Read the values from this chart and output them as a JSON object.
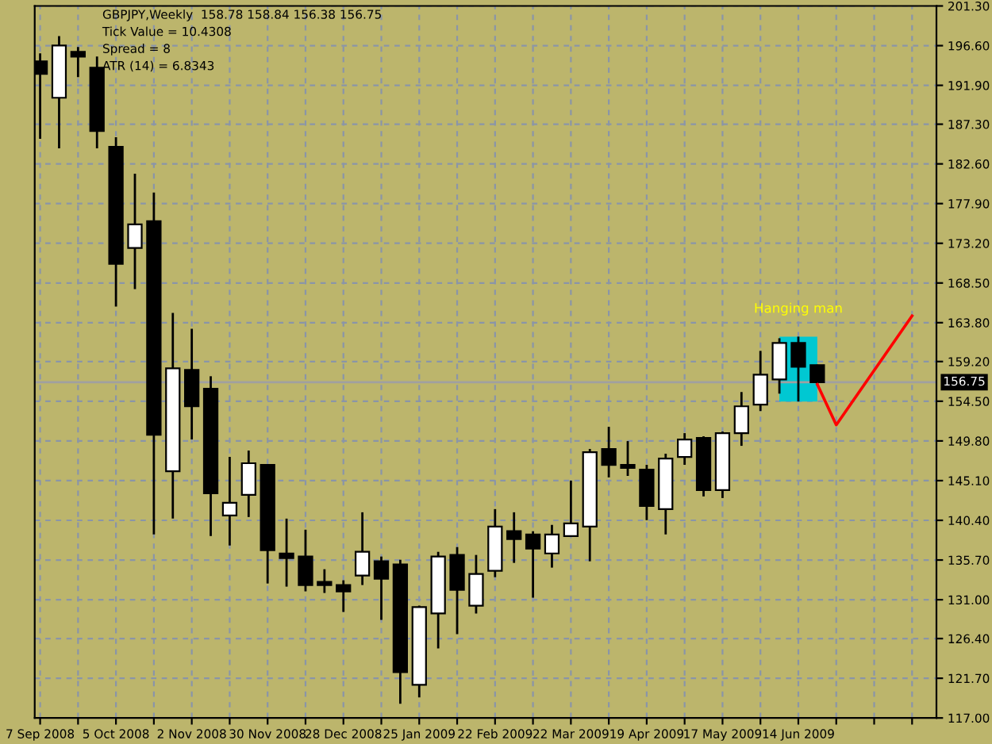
{
  "chart_data": {
    "type": "candlestick",
    "annotations": [
      "GBPJPY,Weekly  158.78 158.84 156.38 156.75",
      "Tick Value = 10.4308",
      "Spread = 8",
      "ATR (14) = 6.8343"
    ],
    "x": [
      "2008-09-07",
      "2008-09-14",
      "2008-09-21",
      "2008-09-28",
      "2008-10-05",
      "2008-10-12",
      "2008-10-19",
      "2008-10-26",
      "2008-11-02",
      "2008-11-09",
      "2008-11-16",
      "2008-11-23",
      "2008-11-30",
      "2008-12-07",
      "2008-12-14",
      "2008-12-21",
      "2008-12-28",
      "2009-01-04",
      "2009-01-11",
      "2009-01-18",
      "2009-01-25",
      "2009-02-01",
      "2009-02-08",
      "2009-02-15",
      "2009-02-22",
      "2009-03-01",
      "2009-03-08",
      "2009-03-15",
      "2009-03-22",
      "2009-03-29",
      "2009-04-05",
      "2009-04-12",
      "2009-04-19",
      "2009-04-26",
      "2009-05-03",
      "2009-05-10",
      "2009-05-17",
      "2009-05-24",
      "2009-05-31",
      "2009-06-07",
      "2009-06-14",
      "2009-06-21"
    ],
    "ohlc": [
      [
        194.74,
        195.68,
        185.56,
        193.25
      ],
      [
        190.43,
        197.74,
        184.44,
        196.62
      ],
      [
        195.87,
        196.43,
        192.87,
        195.31
      ],
      [
        193.99,
        195.31,
        184.44,
        186.5
      ],
      [
        184.63,
        185.75,
        165.71,
        170.76
      ],
      [
        172.64,
        181.44,
        167.77,
        175.45
      ],
      [
        175.82,
        179.2,
        138.73,
        150.53
      ],
      [
        146.22,
        164.96,
        140.6,
        158.4
      ],
      [
        158.21,
        163.08,
        149.97,
        153.9
      ],
      [
        155.97,
        157.46,
        138.54,
        143.6
      ],
      [
        140.98,
        147.91,
        137.42,
        142.48
      ],
      [
        143.41,
        148.66,
        140.79,
        147.16
      ],
      [
        146.97,
        146.97,
        132.92,
        136.86
      ],
      [
        136.48,
        140.6,
        132.55,
        135.92
      ],
      [
        136.11,
        139.29,
        131.99,
        132.74
      ],
      [
        133.11,
        134.61,
        131.8,
        132.74
      ],
      [
        132.74,
        133.3,
        129.55,
        131.99
      ],
      [
        133.86,
        141.35,
        132.74,
        136.67
      ],
      [
        135.55,
        136.11,
        128.62,
        133.49
      ],
      [
        135.17,
        135.73,
        118.69,
        122.43
      ],
      [
        120.93,
        130.3,
        119.44,
        130.12
      ],
      [
        129.37,
        136.67,
        125.24,
        136.11
      ],
      [
        136.3,
        137.23,
        126.93,
        132.17
      ],
      [
        130.3,
        136.3,
        129.37,
        134.05
      ],
      [
        134.42,
        141.73,
        133.67,
        139.67
      ],
      [
        139.11,
        141.35,
        135.36,
        138.17
      ],
      [
        138.73,
        139.11,
        131.24,
        137.05
      ],
      [
        136.48,
        139.86,
        134.8,
        138.73
      ],
      [
        138.54,
        145.1,
        138.54,
        140.04
      ],
      [
        139.67,
        148.85,
        135.55,
        148.47
      ],
      [
        148.85,
        151.47,
        145.48,
        146.97
      ],
      [
        146.97,
        149.78,
        145.66,
        146.6
      ],
      [
        146.41,
        146.97,
        140.42,
        142.1
      ],
      [
        141.73,
        148.29,
        138.73,
        147.72
      ],
      [
        147.91,
        150.72,
        146.97,
        149.97
      ],
      [
        150.16,
        150.35,
        143.23,
        143.98
      ],
      [
        143.98,
        150.91,
        143.04,
        150.72
      ],
      [
        150.72,
        155.59,
        149.22,
        153.9
      ],
      [
        154.09,
        160.46,
        153.34,
        157.65
      ],
      [
        157.09,
        161.96,
        155.4,
        161.4
      ],
      [
        161.4,
        162.15,
        154.47,
        158.59
      ],
      [
        158.78,
        158.84,
        156.38,
        156.75
      ]
    ],
    "series": [
      {
        "type": "line",
        "color": "#ff0000",
        "x": [
          "2009-06-21",
          "2009-06-28",
          "2009-07-26"
        ],
        "values": [
          156.5,
          151.7,
          164.6
        ]
      }
    ],
    "ref_lines": [
      {
        "axis": "y",
        "value": 156.75,
        "label": "156.75",
        "color": "#a0a0a0"
      }
    ],
    "bands": [
      {
        "axis": "x",
        "from": "2009-06-07",
        "to": "2009-06-21",
        "color": "#00c8d2",
        "label": "Hanging man"
      }
    ],
    "xlim": [
      "2008-09-05",
      "2009-08-04"
    ],
    "xticks": [
      {
        "value": "2008-09-07",
        "label": "7 Sep 2008"
      },
      {
        "value": "2008-09-21",
        "label": null
      },
      {
        "value": "2008-10-05",
        "label": "5 Oct 2008"
      },
      {
        "value": "2008-10-19",
        "label": null
      },
      {
        "value": "2008-11-02",
        "label": "2 Nov 2008"
      },
      {
        "value": "2008-11-16",
        "label": null
      },
      {
        "value": "2008-11-30",
        "label": "30 Nov 2008"
      },
      {
        "value": "2008-12-14",
        "label": null
      },
      {
        "value": "2008-12-28",
        "label": "28 Dec 2008"
      },
      {
        "value": "2009-01-11",
        "label": null
      },
      {
        "value": "2009-01-25",
        "label": "25 Jan 2009"
      },
      {
        "value": "2009-02-08",
        "label": null
      },
      {
        "value": "2009-02-22",
        "label": "22 Feb 2009"
      },
      {
        "value": "2009-03-08",
        "label": null
      },
      {
        "value": "2009-03-22",
        "label": "22 Mar 2009"
      },
      {
        "value": "2009-04-05",
        "label": null
      },
      {
        "value": "2009-04-19",
        "label": "19 Apr 2009"
      },
      {
        "value": "2009-05-03",
        "label": null
      },
      {
        "value": "2009-05-17",
        "label": "17 May 2009"
      },
      {
        "value": "2009-05-31",
        "label": null
      },
      {
        "value": "2009-06-14",
        "label": "14 Jun 2009"
      },
      {
        "value": "2009-06-28",
        "label": null
      },
      {
        "value": "2009-07-12",
        "label": null
      },
      {
        "value": "2009-07-26",
        "label": null
      }
    ],
    "ylim": [
      117.0,
      201.3
    ],
    "yticks": [
      {
        "value": 201.3,
        "label": "201.30"
      },
      {
        "value": 196.6,
        "label": "196.60"
      },
      {
        "value": 191.9,
        "label": "191.90"
      },
      {
        "value": 187.3,
        "label": "187.30"
      },
      {
        "value": 182.6,
        "label": "182.60"
      },
      {
        "value": 177.9,
        "label": "177.90"
      },
      {
        "value": 173.2,
        "label": "173.20"
      },
      {
        "value": 168.5,
        "label": "168.50"
      },
      {
        "value": 163.8,
        "label": "163.80"
      },
      {
        "value": 159.2,
        "label": "159.20"
      },
      {
        "value": 154.5,
        "label": "154.50"
      },
      {
        "value": 149.8,
        "label": "149.80"
      },
      {
        "value": 145.1,
        "label": "145.10"
      },
      {
        "value": 140.4,
        "label": "140.40"
      },
      {
        "value": 135.7,
        "label": "135.70"
      },
      {
        "value": 131.0,
        "label": "131.00"
      },
      {
        "value": 126.4,
        "label": "126.40"
      },
      {
        "value": 121.7,
        "label": "121.70"
      },
      {
        "value": 117.0,
        "label": "117.00"
      }
    ],
    "grid": true
  }
}
